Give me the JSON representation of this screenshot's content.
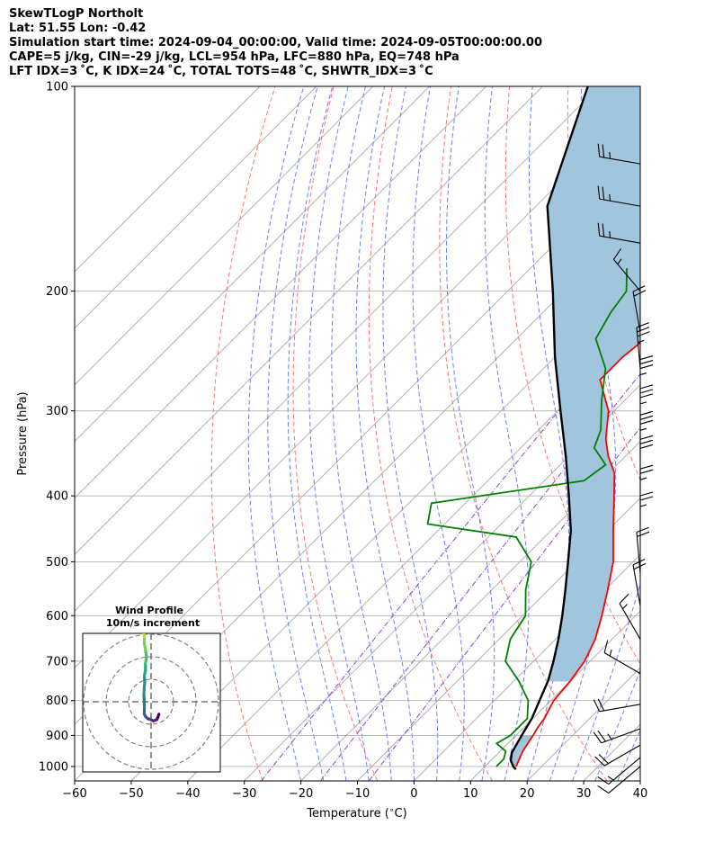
{
  "header": {
    "lines": [
      "SkewTLogP Northolt",
      "Lat: 51.55   Lon: -0.42",
      "Simulation start time: 2024-09-04_00:00:00, Valid time: 2024-09-05T00:00:00.00",
      "CAPE=5 j/kg, CIN=-29 j/kg, LCL=954 hPa, LFC=880 hPa, EQ=748 hPa",
      "LFT IDX=3 ˚C, K IDX=24 ˚C, TOTAL TOTS=48 ˚C, SHWTR_IDX=3 ˚C"
    ]
  },
  "colors": {
    "temperature": "#ff0000",
    "dewpoint": "#008000",
    "parcel": "#000000",
    "cape_fill": "#a2c5de",
    "dry_adiabat": "#ff6666",
    "moist_adiabat": "#5566ff",
    "mixing_ratio": "#8844cc",
    "isotherm": "#aaaaaa",
    "grid": "#b0b0b0"
  },
  "chart_data": [
    {
      "type": "line",
      "subtype": "skew-t log-p",
      "xlabel": "Temperature ($^\\circ$C)",
      "ylabel": "Pressure (hPa)",
      "xlim": [
        -60,
        40
      ],
      "ylim": [
        1050,
        100
      ],
      "y_scale": "log",
      "x_ticks": [
        "−60",
        "−50",
        "−40",
        "−30",
        "−20",
        "−10",
        "0",
        "10",
        "20",
        "30",
        "40"
      ],
      "y_ticks": [
        "100",
        "200",
        "300",
        "400",
        "500",
        "600",
        "700",
        "800",
        "900",
        "1000"
      ],
      "grid": true,
      "series": [
        {
          "role": "temperature",
          "p": [
            1000,
            950,
            925,
            900,
            880,
            850,
            800,
            750,
            700,
            650,
            600,
            550,
            500,
            450,
            400,
            370,
            350,
            330,
            300,
            270,
            250,
            230,
            210,
            190,
            170,
            150,
            130,
            115,
            100
          ],
          "t": [
            15.5,
            14.0,
            13.5,
            13.0,
            12.5,
            12.0,
            10.5,
            10.0,
            9.0,
            7.0,
            4.0,
            0.5,
            -3.5,
            -9.0,
            -15.0,
            -19.0,
            -23.0,
            -26.5,
            -31.0,
            -38.0,
            -38.0,
            -37.0,
            -37.0,
            -36.0,
            -36.0,
            -36.5,
            -37.0,
            -36.0,
            -38.0
          ]
        },
        {
          "role": "dewpoint",
          "p": [
            1000,
            975,
            950,
            925,
            900,
            850,
            800,
            750,
            700,
            650,
            600,
            550,
            500,
            460,
            440,
            410,
            380,
            360,
            340,
            320,
            290,
            260,
            235,
            215,
            200,
            185
          ],
          "td": [
            12.0,
            12.0,
            11.0,
            8.0,
            9.0,
            9.0,
            6.0,
            1.0,
            -5.0,
            -8.0,
            -9.5,
            -14.0,
            -18.0,
            -25.0,
            -43.0,
            -46.0,
            -23.0,
            -22.0,
            -27.0,
            -29.0,
            -34.0,
            -39.0,
            -46.0,
            -48.0,
            -49.0,
            -53.0
          ]
        },
        {
          "role": "parcel",
          "p": [
            1010,
            1000,
            980,
            954,
            900,
            850,
            800,
            748,
            700,
            650,
            600,
            550,
            500,
            450,
            400,
            350,
            300,
            250,
            200,
            150,
            100
          ],
          "t": [
            16.0,
            15.0,
            13.5,
            12.3,
            11.0,
            9.8,
            8.0,
            6.0,
            3.5,
            0.5,
            -3.0,
            -7.0,
            -11.5,
            -16.5,
            -23.0,
            -30.5,
            -39.5,
            -50.0,
            -62.0,
            -78.0,
            -92.0
          ]
        }
      ],
      "wind_barbs": [
        {
          "p": 130,
          "speed_kt": 25,
          "dir_deg": 280
        },
        {
          "p": 150,
          "speed_kt": 25,
          "dir_deg": 280
        },
        {
          "p": 170,
          "speed_kt": 25,
          "dir_deg": 280
        },
        {
          "p": 200,
          "speed_kt": 15,
          "dir_deg": 320
        },
        {
          "p": 230,
          "speed_kt": 20,
          "dir_deg": 350
        },
        {
          "p": 260,
          "speed_kt": 35,
          "dir_deg": 355
        },
        {
          "p": 290,
          "speed_kt": 35,
          "dir_deg": 0
        },
        {
          "p": 320,
          "speed_kt": 35,
          "dir_deg": 0
        },
        {
          "p": 350,
          "speed_kt": 35,
          "dir_deg": 0
        },
        {
          "p": 380,
          "speed_kt": 30,
          "dir_deg": 0
        },
        {
          "p": 420,
          "speed_kt": 25,
          "dir_deg": 0
        },
        {
          "p": 460,
          "speed_kt": 25,
          "dir_deg": 0
        },
        {
          "p": 520,
          "speed_kt": 20,
          "dir_deg": 355
        },
        {
          "p": 580,
          "speed_kt": 20,
          "dir_deg": 350
        },
        {
          "p": 650,
          "speed_kt": 15,
          "dir_deg": 330
        },
        {
          "p": 730,
          "speed_kt": 15,
          "dir_deg": 300
        },
        {
          "p": 810,
          "speed_kt": 20,
          "dir_deg": 260
        },
        {
          "p": 880,
          "speed_kt": 25,
          "dir_deg": 250
        },
        {
          "p": 930,
          "speed_kt": 20,
          "dir_deg": 240
        },
        {
          "p": 970,
          "speed_kt": 15,
          "dir_deg": 230
        },
        {
          "p": 1000,
          "speed_kt": 10,
          "dir_deg": 230
        }
      ]
    },
    {
      "type": "scatter",
      "subtype": "hodograph",
      "title": "Wind Profile",
      "subtitle": "10m/s increment",
      "ring_increment_ms": 10,
      "u": [
        3.5,
        3.0,
        2.5,
        1.0,
        0.0,
        -1.5,
        -2.5,
        -3.0,
        -3.0,
        -3.0,
        -3.2,
        -3.0,
        -2.8,
        -3.0,
        -2.5,
        -2.5,
        -2.0,
        -2.5,
        -3.0,
        -3.0,
        -3.5,
        -3.5,
        -3.2,
        -3.0
      ],
      "v": [
        -5.5,
        -7.0,
        -8.0,
        -8.5,
        -8.0,
        -7.5,
        -6.5,
        -5.5,
        -3.0,
        0.0,
        3.0,
        6.5,
        9.0,
        11.5,
        14.0,
        17.0,
        20.0,
        23.0,
        26.0,
        29.0,
        32.0,
        34.0,
        36.0,
        37.0
      ],
      "colormap": "viridis"
    }
  ]
}
